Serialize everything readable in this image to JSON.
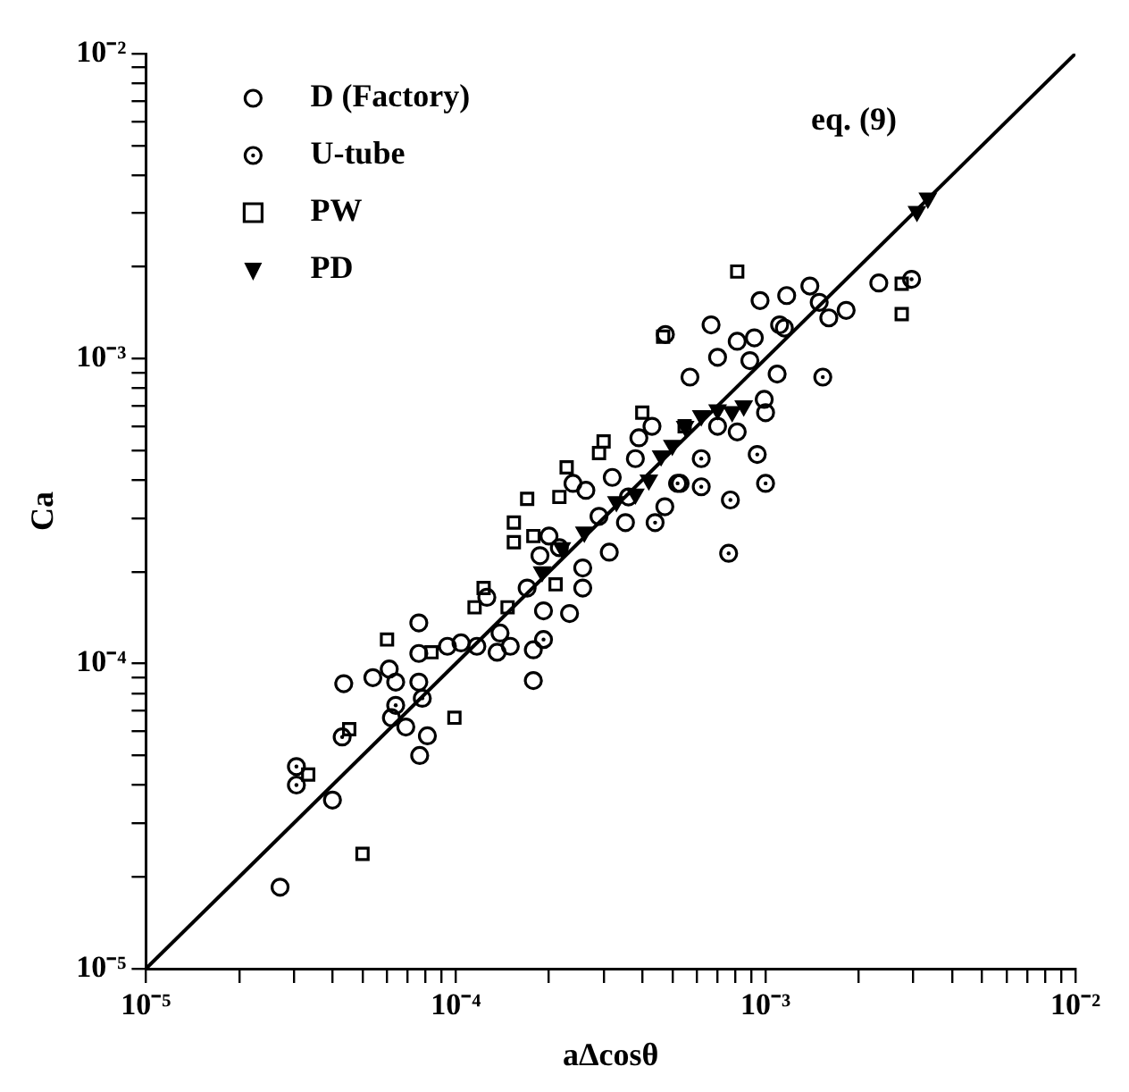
{
  "chart_data": {
    "type": "scatter",
    "xlabel": "aΔcosθ",
    "ylabel": "Ca",
    "log": "xy",
    "grid": false,
    "legend": "top left",
    "xlim": [
      1e-05,
      0.01
    ],
    "ylim": [
      1e-05,
      0.01
    ],
    "xticks": [
      {
        "value": 1e-05,
        "label": "10⁻⁵"
      },
      {
        "value": 2e-05,
        "label": null
      },
      {
        "value": 3e-05,
        "label": null
      },
      {
        "value": 4e-05,
        "label": null
      },
      {
        "value": 5e-05,
        "label": null
      },
      {
        "value": 6e-05,
        "label": null
      },
      {
        "value": 7e-05,
        "label": null
      },
      {
        "value": 8e-05,
        "label": null
      },
      {
        "value": 9e-05,
        "label": null
      },
      {
        "value": 0.0001,
        "label": "10⁻⁴"
      },
      {
        "value": 0.0002,
        "label": null
      },
      {
        "value": 0.0003,
        "label": null
      },
      {
        "value": 0.0004,
        "label": null
      },
      {
        "value": 0.0005,
        "label": null
      },
      {
        "value": 0.0006,
        "label": null
      },
      {
        "value": 0.0007,
        "label": null
      },
      {
        "value": 0.0008,
        "label": null
      },
      {
        "value": 0.0009,
        "label": null
      },
      {
        "value": 0.001,
        "label": "10⁻³"
      },
      {
        "value": 0.002,
        "label": null
      },
      {
        "value": 0.003,
        "label": null
      },
      {
        "value": 0.004,
        "label": null
      },
      {
        "value": 0.005,
        "label": null
      },
      {
        "value": 0.006,
        "label": null
      },
      {
        "value": 0.007,
        "label": null
      },
      {
        "value": 0.008,
        "label": null
      },
      {
        "value": 0.009,
        "label": null
      },
      {
        "value": 0.01,
        "label": "10⁻²"
      }
    ],
    "yticks": [
      {
        "value": 1e-05,
        "label": "10⁻⁵"
      },
      {
        "value": 2e-05,
        "label": null
      },
      {
        "value": 3e-05,
        "label": null
      },
      {
        "value": 4e-05,
        "label": null
      },
      {
        "value": 5e-05,
        "label": null
      },
      {
        "value": 6e-05,
        "label": null
      },
      {
        "value": 7e-05,
        "label": null
      },
      {
        "value": 8e-05,
        "label": null
      },
      {
        "value": 9e-05,
        "label": null
      },
      {
        "value": 0.0001,
        "label": "10⁻⁴"
      },
      {
        "value": 0.0002,
        "label": null
      },
      {
        "value": 0.0003,
        "label": null
      },
      {
        "value": 0.0004,
        "label": null
      },
      {
        "value": 0.0005,
        "label": null
      },
      {
        "value": 0.0006,
        "label": null
      },
      {
        "value": 0.0007,
        "label": null
      },
      {
        "value": 0.0008,
        "label": null
      },
      {
        "value": 0.0009,
        "label": null
      },
      {
        "value": 0.001,
        "label": "10⁻³"
      },
      {
        "value": 0.002,
        "label": null
      },
      {
        "value": 0.003,
        "label": null
      },
      {
        "value": 0.004,
        "label": null
      },
      {
        "value": 0.005,
        "label": null
      },
      {
        "value": 0.006,
        "label": null
      },
      {
        "value": 0.007,
        "label": null
      },
      {
        "value": 0.008,
        "label": null
      },
      {
        "value": 0.009,
        "label": null
      },
      {
        "value": 0.01,
        "label": "10⁻²"
      }
    ],
    "annotations": [
      "eq. (9)"
    ],
    "series": [
      {
        "name": "D (Factory)",
        "color": "#000000",
        "marker": "circle",
        "x": [
          2.71e-05,
          4e-05,
          4.35e-05,
          5.4e-05,
          7.6e-05,
          6.1e-05,
          6.4e-05,
          7.6e-05,
          6.9e-05,
          8.1e-05,
          7.65e-05,
          6.2e-05,
          7.6e-05,
          9.4e-05,
          0.000104,
          0.000117,
          0.000136,
          0.00015,
          0.000178,
          0.000178,
          0.000139,
          0.00017,
          0.000192,
          0.000233,
          0.000257,
          0.000257,
          0.000313,
          0.00029,
          0.000353,
          0.000361,
          0.00032,
          0.00038,
          0.000473,
          0.00053,
          0.00057,
          0.000667,
          0.00096,
          0.00117,
          0.00139,
          0.00149,
          0.00182,
          0.0016,
          0.00111,
          0.00115,
          0.00092,
          0.00081,
          0.0007,
          0.00089,
          0.00109,
          0.00099,
          0.001,
          0.00081,
          0.0007,
          0.000475,
          0.00232,
          0.000239,
          0.000263,
          0.0002,
          0.000216,
          0.000187,
          0.000126,
          0.00039,
          0.00043
        ],
        "values": [
          1.85e-05,
          3.57e-05,
          8.6e-05,
          9e-05,
          0.000136,
          9.6e-05,
          8.7e-05,
          8.7e-05,
          6.2e-05,
          5.8e-05,
          5e-05,
          6.65e-05,
          0.000108,
          0.000114,
          0.000117,
          0.000114,
          0.000109,
          0.000114,
          8.8e-05,
          0.000111,
          0.000126,
          0.000177,
          0.000149,
          0.000146,
          0.000177,
          0.000206,
          0.000232,
          0.000304,
          0.00029,
          0.000352,
          0.000408,
          0.00047,
          0.000327,
          0.00039,
          0.00087,
          0.00129,
          0.00155,
          0.00161,
          0.00173,
          0.00153,
          0.00144,
          0.00136,
          0.00129,
          0.00126,
          0.00117,
          0.00114,
          0.00101,
          0.000985,
          0.00089,
          0.000735,
          0.000665,
          0.000575,
          0.0006,
          0.0012,
          0.00177,
          0.00039,
          0.00037,
          0.000262,
          0.00024,
          0.000226,
          0.000165,
          0.00055,
          0.0006
        ]
      },
      {
        "name": "U-tube",
        "color": "#000000",
        "marker": "circle",
        "x": [
          0.00153,
          0.00062,
          0.00062,
          0.00094,
          0.001,
          0.00077,
          0.00076,
          0.00044,
          0.00296,
          3.06e-05,
          3.06e-05,
          4.3e-05,
          0.00052,
          0.000192,
          6.4e-05,
          7.8e-05
        ],
        "values": [
          0.00087,
          0.00047,
          0.00038,
          0.000485,
          0.00039,
          0.000344,
          0.00023,
          0.00029,
          0.00182,
          4.6e-05,
          4e-05,
          5.75e-05,
          0.00039,
          0.00012,
          7.3e-05,
          7.7e-05
        ]
      },
      {
        "name": "PW",
        "color": "#000000",
        "marker": "square",
        "x": [
          0.00081,
          0.000467,
          0.00275,
          0.00275,
          0.0004,
          0.0003,
          0.00029,
          0.000228,
          0.00017,
          0.000216,
          0.000154,
          0.000154,
          0.000123,
          0.000115,
          0.000147,
          0.00021,
          6e-05,
          8.35e-05,
          4.53e-05,
          9.9e-05,
          3.34e-05,
          5e-05,
          0.000178,
          0.000548
        ],
        "values": [
          0.00193,
          0.00118,
          0.00176,
          0.0014,
          0.000665,
          0.000535,
          0.00049,
          0.00044,
          0.000347,
          0.000352,
          0.00029,
          0.00025,
          0.000177,
          0.000153,
          0.000153,
          0.000182,
          0.00012,
          0.000109,
          6.1e-05,
          6.65e-05,
          4.33e-05,
          2.38e-05,
          0.000262,
          0.0006
        ]
      },
      {
        "name": "PD",
        "color": "#000000",
        "marker": "triangle",
        "x": [
          0.00334,
          0.00308,
          0.0007,
          0.00062,
          0.00055,
          0.0005,
          0.00046,
          0.00042,
          0.00038,
          0.00033,
          0.00026,
          0.00022,
          0.00019,
          0.00078,
          0.00085
        ],
        "values": [
          0.00336,
          0.00304,
          0.00068,
          0.00065,
          0.0006,
          0.00052,
          0.00048,
          0.0004,
          0.00036,
          0.00034,
          0.00027,
          0.00024,
          0.0002,
          0.00067,
          0.0007
        ]
      },
      {
        "type": "line",
        "color": "#000000",
        "marker": "none",
        "line_style": "solid",
        "x": [
          1e-05,
          0.01
        ],
        "values": [
          1e-05,
          0.01
        ]
      }
    ]
  }
}
